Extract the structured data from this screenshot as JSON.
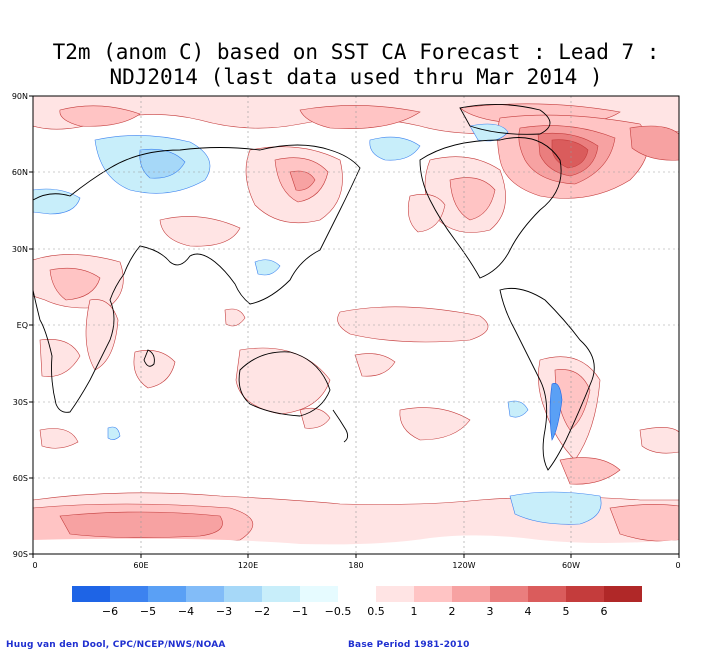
{
  "title": {
    "line1": "T2m (anom C) based on SST CA Forecast : Lead 7 :",
    "line2": "NDJ2014 (last data used thru Mar 2014 )"
  },
  "axes": {
    "lat_labels": [
      "90N",
      "60N",
      "30N",
      "EQ",
      "30S",
      "60S",
      "90S"
    ],
    "lon_labels": [
      "0",
      "60E",
      "120E",
      "180",
      "120W",
      "60W",
      "0"
    ]
  },
  "colorbar": {
    "labels": [
      "−6",
      "−5",
      "−4",
      "−3",
      "−2",
      "−1",
      "−0.5",
      "0.5",
      "1",
      "2",
      "3",
      "4",
      "5",
      "6"
    ],
    "colors": [
      "#1e64e6",
      "#3c82f0",
      "#5aa0f5",
      "#82bcf8",
      "#a6d8f8",
      "#c8eefa",
      "#e6fbff",
      "#ffffff",
      "#ffe4e4",
      "#ffc4c4",
      "#f7a2a2",
      "#ea7e7e",
      "#da5c5c",
      "#c43c3c",
      "#b02828"
    ]
  },
  "colors": {
    "warm_light": "#ffe4e4",
    "warm_mid": "#ffc4c4",
    "warm_strong": "#f7a2a2",
    "warm_stronger": "#ea7e7e",
    "warm_max": "#da5c5c",
    "cool_light": "#c8eefa",
    "cool_mid": "#a6d8f8",
    "cool_strong": "#5aa0f5"
  },
  "footer": {
    "credit": "Huug van den Dool, CPC/NCEP/NWS/NOAA",
    "base": "Base Period 1981-2010"
  }
}
